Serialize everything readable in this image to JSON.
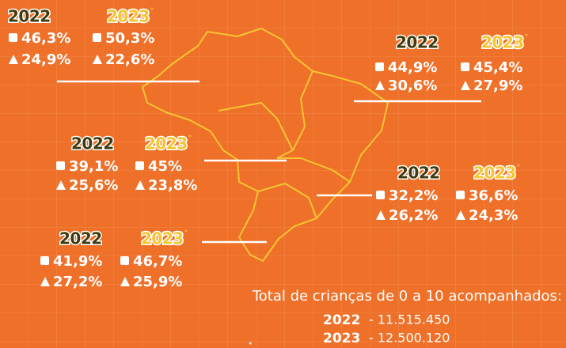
{
  "regions": [
    {
      "years": [
        "2022",
        "2023"
      ],
      "square": [
        "46,3%",
        "50,3%"
      ],
      "triangle": [
        "24,9%",
        "22,6%"
      ]
    },
    {
      "years": [
        "2022",
        "2023"
      ],
      "square": [
        "44,9%",
        "45,4%"
      ],
      "triangle": [
        "30,6%",
        "27,9%"
      ]
    },
    {
      "years": [
        "2022",
        "2023"
      ],
      "square": [
        "39,1%",
        "45%"
      ],
      "triangle": [
        "25,6%",
        "23,8%"
      ]
    },
    {
      "years": [
        "2022",
        "2023"
      ],
      "square": [
        "32,2%",
        "36,6%"
      ],
      "triangle": [
        "26,2%",
        "24,3%"
      ]
    },
    {
      "years": [
        "2022",
        "2023"
      ],
      "square": [
        "41,9%",
        "46,7%"
      ],
      "triangle": [
        "27,2%",
        "25,9%"
      ]
    }
  ],
  "footnote_mark": "*",
  "total": {
    "title": "Total de crianças de 0 a 10 acompanhados:",
    "rows": [
      {
        "year": "2022",
        "value": "- 11.515.450"
      },
      {
        "year": "2023",
        "value": "- 12.500.120"
      }
    ]
  }
}
